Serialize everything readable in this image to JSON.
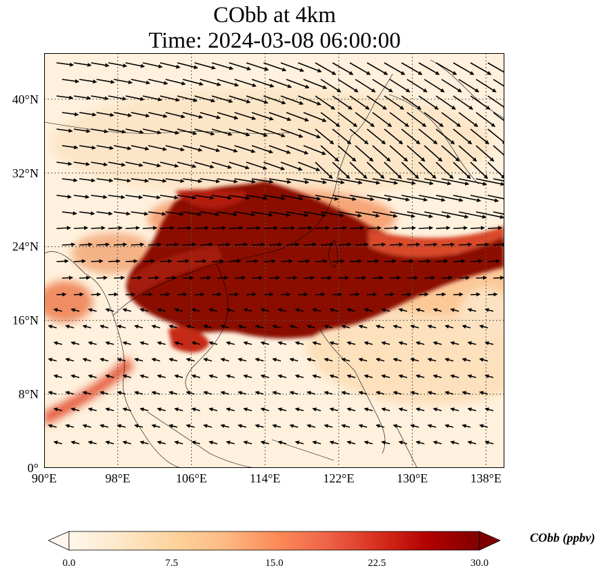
{
  "title": {
    "line1": "CObb at 4km",
    "line2": "Time: 2024-03-08 06:00:00"
  },
  "map": {
    "lon_range": [
      90,
      140
    ],
    "lat_range": [
      0,
      45
    ],
    "gridlines": true,
    "lat_ticks": [
      {
        "value": 0,
        "label": "0°"
      },
      {
        "value": 8,
        "label": "8°N"
      },
      {
        "value": 16,
        "label": "16°N"
      },
      {
        "value": 24,
        "label": "24°N"
      },
      {
        "value": 32,
        "label": "32°N"
      },
      {
        "value": 40,
        "label": "40°N"
      }
    ],
    "lon_ticks": [
      {
        "value": 90,
        "label": "90°E"
      },
      {
        "value": 98,
        "label": "98°E"
      },
      {
        "value": 106,
        "label": "106°E"
      },
      {
        "value": 114,
        "label": "114°E"
      },
      {
        "value": 122,
        "label": "122°E"
      },
      {
        "value": 130,
        "label": "130°E"
      },
      {
        "value": 138,
        "label": "138°E"
      }
    ],
    "wind_vectors": "quiver overlay, westerly flow in north, easterly in south"
  },
  "colorbar": {
    "label": "CObb (ppbv)",
    "min": 0,
    "max": 30,
    "extend": "both",
    "colormap": "OrRd",
    "ticks": [
      "0.0",
      "7.5",
      "15.0",
      "22.5",
      "30.0"
    ],
    "colors": [
      "#fff7ec",
      "#fee8c8",
      "#fdd49e",
      "#fdbb84",
      "#fc8d59",
      "#ef6548",
      "#d7301f",
      "#b30000",
      "#7f0000"
    ]
  }
}
